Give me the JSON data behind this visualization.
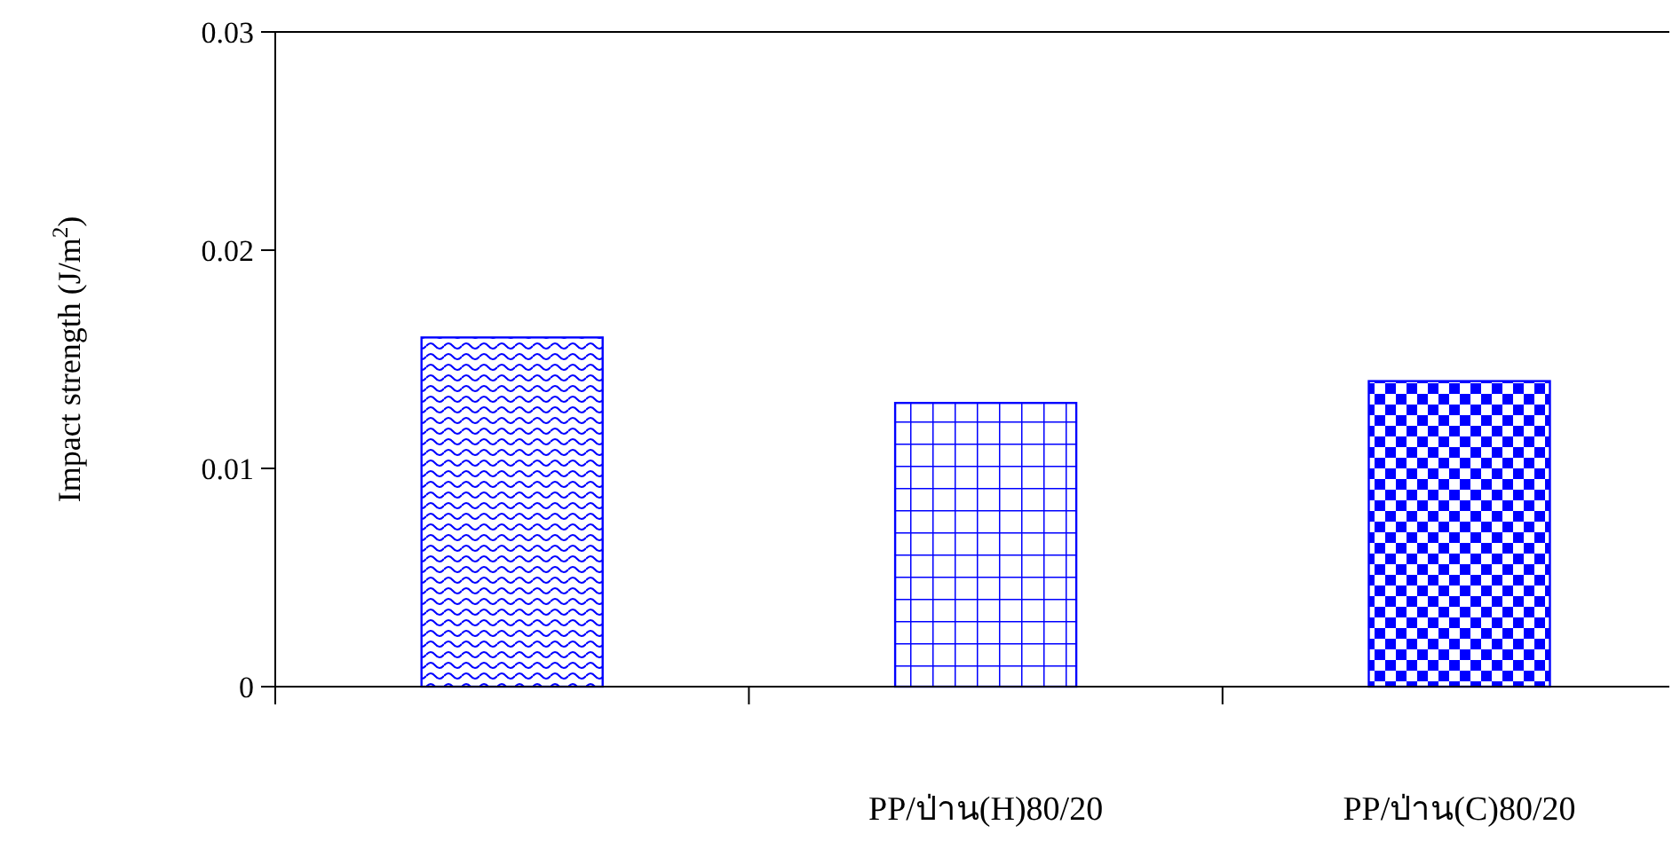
{
  "chart_data": {
    "type": "bar",
    "ylabel": "Impact strength (J/m$^{2}$)",
    "categories": [
      null,
      "PP/ป่าน(H)80/20",
      "PP/ป่าน(C)80/20"
    ],
    "values": [
      0.016,
      0.013,
      0.014
    ],
    "colors": [
      "#0000ff",
      "#0000ff",
      "#0000ff"
    ],
    "ylim": [
      0,
      0.03
    ],
    "yticks": [
      0,
      0.01,
      0.02,
      0.03
    ],
    "grid": false
  }
}
